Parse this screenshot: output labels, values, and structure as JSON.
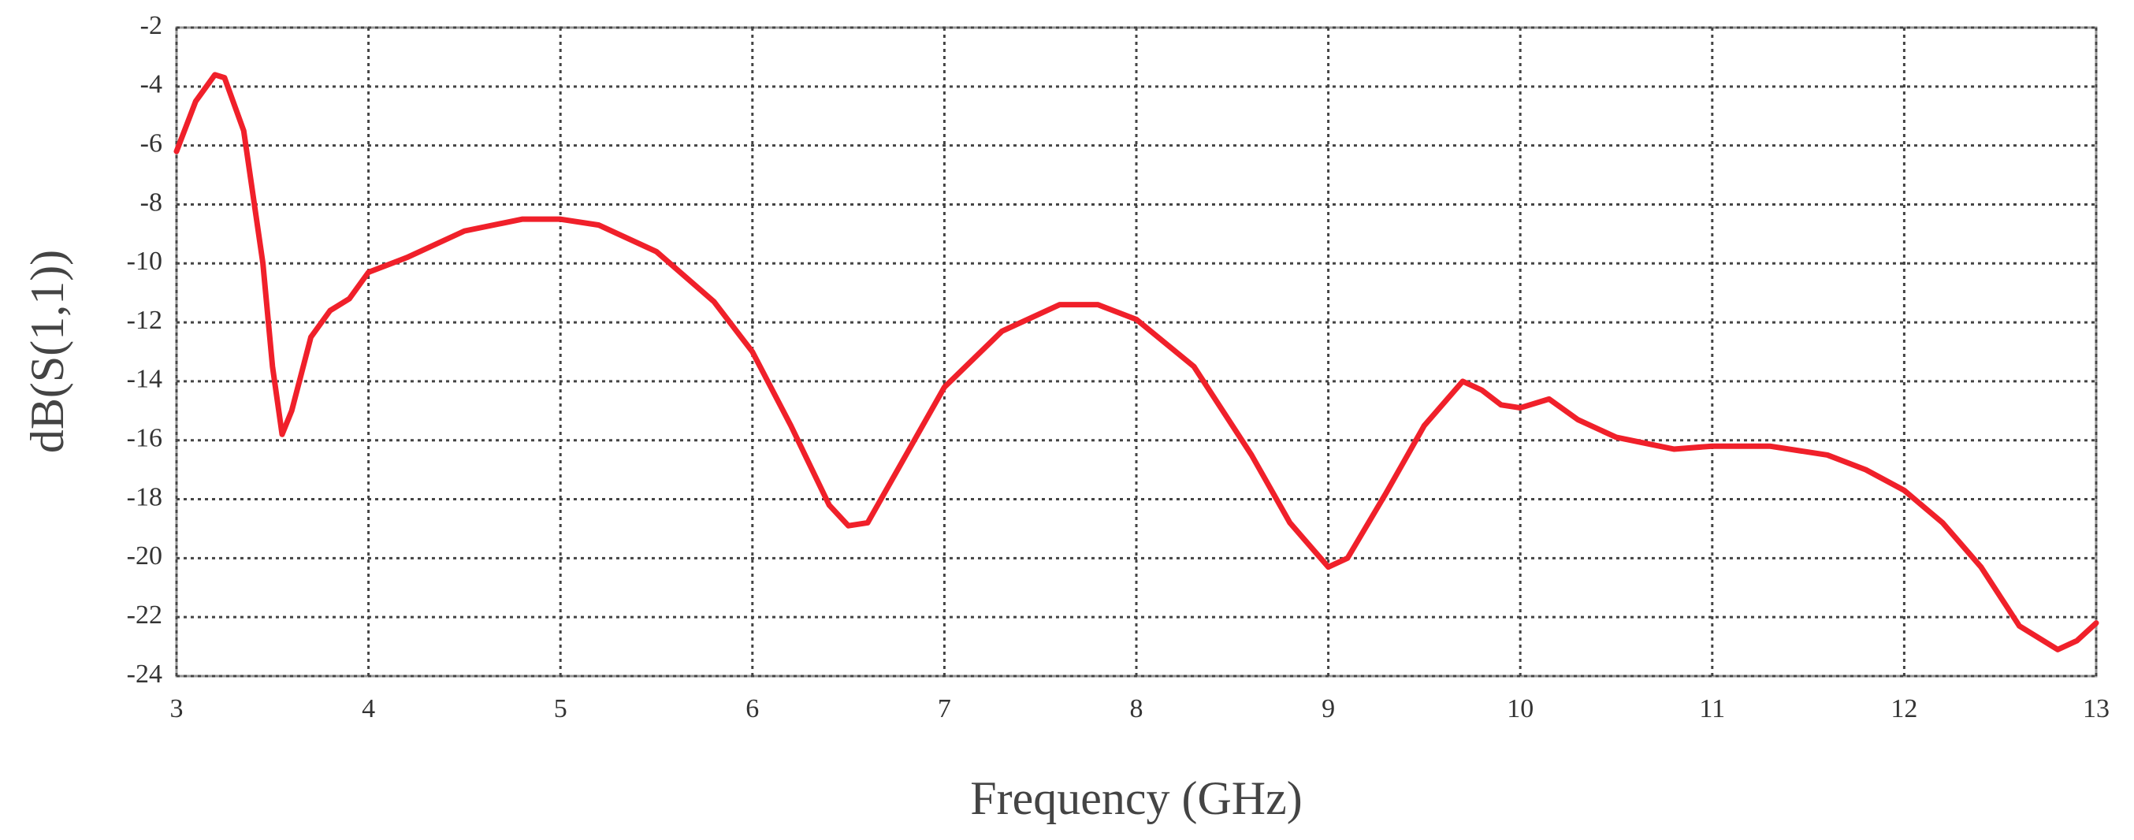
{
  "chart_data": {
    "type": "line",
    "x_label": "Frequency (GHz)",
    "y_label": "dB(S(1,1))",
    "x": [
      3.0,
      3.1,
      3.2,
      3.25,
      3.35,
      3.45,
      3.5,
      3.55,
      3.6,
      3.7,
      3.8,
      3.9,
      4.0,
      4.2,
      4.5,
      4.8,
      5.0,
      5.2,
      5.5,
      5.8,
      6.0,
      6.2,
      6.4,
      6.5,
      6.6,
      6.8,
      7.0,
      7.3,
      7.6,
      7.8,
      8.0,
      8.3,
      8.6,
      8.8,
      9.0,
      9.1,
      9.3,
      9.5,
      9.7,
      9.8,
      9.9,
      10.0,
      10.15,
      10.3,
      10.5,
      10.8,
      11.0,
      11.3,
      11.6,
      11.8,
      12.0,
      12.2,
      12.4,
      12.6,
      12.8,
      12.9,
      13.0
    ],
    "series": [
      {
        "color": "#f0202a",
        "values": [
          -6.2,
          -4.5,
          -3.6,
          -3.7,
          -5.5,
          -10,
          -13.5,
          -15.8,
          -15,
          -12.5,
          -11.6,
          -11.2,
          -10.3,
          -9.8,
          -8.9,
          -8.5,
          -8.5,
          -8.7,
          -9.6,
          -11.3,
          -13,
          -15.5,
          -18.2,
          -18.9,
          -18.8,
          -16.5,
          -14.2,
          -12.3,
          -11.4,
          -11.4,
          -11.9,
          -13.5,
          -16.5,
          -18.8,
          -20.3,
          -20,
          -17.8,
          -15.5,
          -14,
          -14.3,
          -14.8,
          -14.9,
          -14.6,
          -15.3,
          -15.9,
          -16.3,
          -16.2,
          -16.2,
          -16.5,
          -17,
          -17.7,
          -18.8,
          -20.3,
          -22.3,
          -23.1,
          -22.8,
          -22.2
        ]
      }
    ],
    "xlim": [
      3,
      13
    ],
    "ylim": [
      -24,
      -2
    ],
    "xticks": [
      3,
      4,
      5,
      6,
      7,
      8,
      9,
      10,
      11,
      12,
      13
    ],
    "yticks": [
      -2,
      -4,
      -6,
      -8,
      -10,
      -12,
      -14,
      -16,
      -18,
      -20,
      -22,
      -24
    ],
    "grid": true
  }
}
